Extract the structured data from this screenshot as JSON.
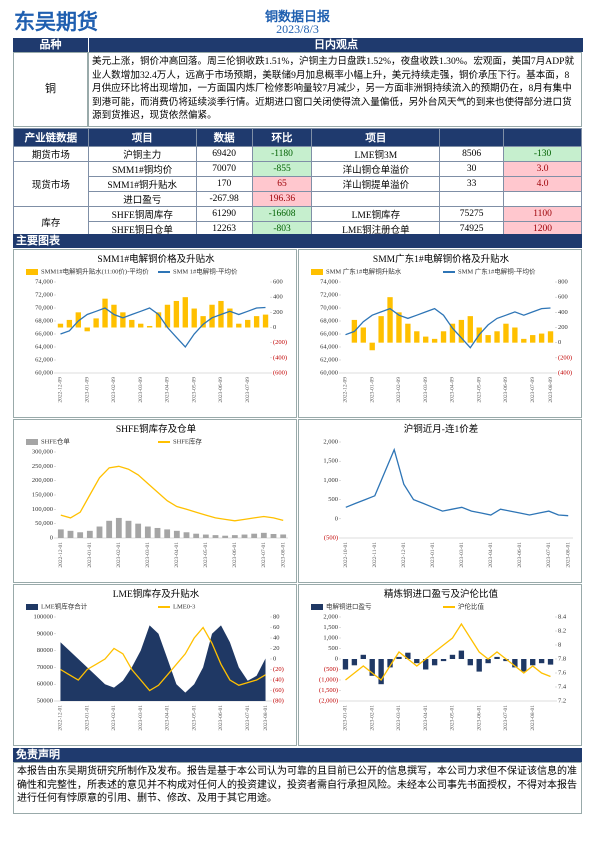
{
  "header": {
    "logo": "东吴期货",
    "title": "铜数据日报",
    "date": "2023/8/3"
  },
  "view": {
    "headers": [
      "品种",
      "日内观点"
    ],
    "variety": "铜",
    "text": "美元上涨，铜价冲高回落。周三伦铜收跌1.51%，沪铜主力日盘跌1.52%，夜盘收跌1.30%。宏观面，美国7月ADP就业人数增加32.4万人，远高于市场预期，美联储9月加息概率小幅上升，美元持续走强，铜价承压下行。基本面，8月供应环比将出现增加，一方面国内炼厂检修影响量较7月减少，另一方面非洲铜持续流入的预期仍在，8月有集中到港可能，而消费仍将延续淡季行情。近期进口窗口关闭使得流入量偏低，另外台风天气的到来也使得部分进口货源到货推迟，现货依然偏紧。"
  },
  "table": {
    "headers": [
      "产业链数据",
      "项目",
      "数据",
      "环比",
      "项目"
    ],
    "groups": [
      {
        "name": "期货市场",
        "rows": [
          [
            "沪铜主力",
            "69420",
            "-1180",
            "LME铜3M",
            "8506",
            "-130"
          ]
        ]
      },
      {
        "name": "现货市场",
        "rows": [
          [
            "SMM1#铜均价",
            "70070",
            "-855",
            "洋山铜仓单溢价",
            "30",
            "3.0"
          ],
          [
            "SMM1#铜升贴水",
            "170",
            "65",
            "洋山铜提单溢价",
            "33",
            "4.0"
          ],
          [
            "进口盈亏",
            "-267.98",
            "196.36"
          ]
        ]
      },
      {
        "name": "库存",
        "rows": [
          [
            "SHFE铜周库存",
            "61290",
            "-16608",
            "LME铜库存",
            "75275",
            "1100"
          ],
          [
            "SHFE铜日仓单",
            "12263",
            "-803",
            "LME铜注册仓单",
            "74925",
            "1200"
          ]
        ]
      }
    ]
  },
  "charts_heading": "主要图表",
  "chart_data": [
    {
      "type": "combo",
      "title": "SMM1#电解铜价格及升贴水",
      "categories": [
        "2022-12-09",
        null,
        null,
        "2023-01-09",
        null,
        null,
        "2023-02-09",
        null,
        null,
        "2023-03-09",
        null,
        null,
        "2023-04-09",
        null,
        null,
        "2023-05-09",
        null,
        null,
        "2023-06-09",
        null,
        null,
        "2023-07-09",
        null,
        null
      ],
      "series": [
        {
          "name": "SMM1#电解铜升贴水(11:00价)-平均价",
          "type": "bar",
          "axis": "y2",
          "color": "#ffc000",
          "values": [
            50,
            100,
            200,
            -50,
            120,
            380,
            300,
            200,
            100,
            50,
            20,
            200,
            300,
            350,
            400,
            250,
            150,
            300,
            350,
            250,
            50,
            100,
            150,
            170
          ]
        },
        {
          "name": "SMM 1#电解铜-平均价",
          "type": "line",
          "color": "#2e75b6",
          "values": [
            66000,
            66500,
            68000,
            69000,
            69500,
            70000,
            69000,
            68500,
            69000,
            69500,
            70000,
            69000,
            67000,
            65500,
            64000,
            66000,
            67500,
            68500,
            69000,
            69500,
            69000,
            69500,
            70000,
            70070
          ]
        }
      ],
      "ylim": [
        60000,
        74000
      ],
      "yticks": [
        {
          "value": 60000,
          "label": "60,000"
        },
        {
          "value": 62000,
          "label": "62,000"
        },
        {
          "value": 64000,
          "label": "64,000"
        },
        {
          "value": 66000,
          "label": "66,000"
        },
        {
          "value": 68000,
          "label": "68,000"
        },
        {
          "value": 70000,
          "label": "70,000"
        },
        {
          "value": 72000,
          "label": "72,000"
        },
        {
          "value": 74000,
          "label": "74,000"
        }
      ],
      "y2lim": [
        -600,
        600
      ],
      "y2ticks": [
        {
          "value": -600,
          "label": "(600)"
        },
        {
          "value": -400,
          "label": "(400)"
        },
        {
          "value": -200,
          "label": "(200)"
        },
        0,
        200,
        400,
        600
      ]
    },
    {
      "type": "combo",
      "title": "SMM广东1#电解铜价格及升贴水",
      "categories": [
        "2022-12-09",
        null,
        null,
        "2023-01-09",
        null,
        null,
        "2023-02-09",
        null,
        null,
        "2023-03-09",
        null,
        null,
        "2023-04-09",
        null,
        null,
        "2023-05-09",
        null,
        null,
        "2023-06-09",
        null,
        null,
        "2023-07-09",
        null,
        "2023-08-09"
      ],
      "series": [
        {
          "name": "SMM 广东1#电解铜升贴水",
          "type": "bar",
          "axis": "y2",
          "color": "#ffc000",
          "values": [
            0,
            300,
            200,
            -100,
            350,
            600,
            400,
            250,
            150,
            80,
            50,
            150,
            250,
            300,
            350,
            200,
            100,
            150,
            250,
            200,
            50,
            100,
            120,
            150
          ]
        },
        {
          "name": "SMM 广东1#电解铜-平均价",
          "type": "line",
          "color": "#2e75b6",
          "values": [
            65900,
            66400,
            67900,
            68900,
            69400,
            69900,
            68900,
            68400,
            68900,
            69400,
            69900,
            68900,
            66900,
            65400,
            63900,
            65900,
            67400,
            68400,
            68900,
            69400,
            68900,
            69400,
            69900,
            70000
          ]
        }
      ],
      "ylim": [
        60000,
        74000
      ],
      "yticks": [
        {
          "value": 60000,
          "label": "60,000"
        },
        {
          "value": 62000,
          "label": "62,000"
        },
        {
          "value": 64000,
          "label": "64,000"
        },
        {
          "value": 66000,
          "label": "66,000"
        },
        {
          "value": 68000,
          "label": "68,000"
        },
        {
          "value": 70000,
          "label": "70,000"
        },
        {
          "value": 72000,
          "label": "72,000"
        },
        {
          "value": 74000,
          "label": "74,000"
        }
      ],
      "y2lim": [
        -400,
        800
      ],
      "y2ticks": [
        {
          "value": -400,
          "label": "(400)"
        },
        {
          "value": -200,
          "label": "(200)"
        },
        0,
        200,
        400,
        600,
        800
      ]
    },
    {
      "type": "combo",
      "title": "SHFE铜库存及仓单",
      "categories": [
        "2022-12-01",
        null,
        null,
        "2023-01-01",
        null,
        null,
        "2023-02-01",
        null,
        null,
        "2023-03-01",
        null,
        null,
        "2023-04-01",
        null,
        null,
        "2023-05-01",
        null,
        null,
        "2023-06-01",
        null,
        null,
        "2023-07-01",
        null,
        "2023-08-01"
      ],
      "series": [
        {
          "name": "SHFE仓单",
          "type": "bar",
          "color": "#a5a5a5",
          "values": [
            30000,
            25000,
            20000,
            25000,
            40000,
            60000,
            70000,
            60000,
            50000,
            40000,
            35000,
            30000,
            25000,
            20000,
            15000,
            12000,
            10000,
            8000,
            10000,
            12000,
            15000,
            18000,
            14000,
            12263
          ]
        },
        {
          "name": "SHFE库存",
          "type": "line",
          "color": "#ffc000",
          "values": [
            80000,
            70000,
            90000,
            150000,
            210000,
            245000,
            250000,
            240000,
            220000,
            190000,
            160000,
            130000,
            110000,
            100000,
            90000,
            80000,
            70000,
            65000,
            60000,
            65000,
            70000,
            75000,
            70000,
            61290
          ]
        }
      ],
      "ylim": [
        0,
        300000
      ],
      "yticks": [
        0,
        {
          "value": 50000,
          "label": "50,000"
        },
        {
          "value": 100000,
          "label": "100,000"
        },
        {
          "value": 150000,
          "label": "150,000"
        },
        {
          "value": 200000,
          "label": "200,000"
        },
        {
          "value": 250000,
          "label": "250,000"
        },
        {
          "value": 300000,
          "label": "300,000"
        }
      ]
    },
    {
      "type": "combo",
      "title": "沪铜近月-连1价差",
      "categories": [
        "2022-10-01",
        null,
        null,
        "2022-11-01",
        null,
        null,
        "2022-12-01",
        null,
        null,
        "2023-01-01",
        null,
        null,
        "2023-03-01",
        null,
        null,
        "2023-04-01",
        null,
        null,
        "2023-06-01",
        null,
        null,
        "2023-07-01",
        null,
        "2023-08-01"
      ],
      "series": [
        {
          "name": "沪铜近月-连1价差",
          "type": "line",
          "color": "#2e75b6",
          "values": [
            300,
            400,
            500,
            600,
            1200,
            1800,
            900,
            500,
            400,
            300,
            200,
            250,
            300,
            200,
            150,
            100,
            250,
            200,
            150,
            100,
            150,
            200,
            100,
            80
          ]
        }
      ],
      "legend": false,
      "ylim": [
        -500,
        2000
      ],
      "yticks": [
        {
          "value": -500,
          "label": "(500)"
        },
        0,
        500,
        {
          "value": 1000,
          "label": "1,000"
        },
        {
          "value": 1500,
          "label": "1,500"
        },
        {
          "value": 2000,
          "label": "2,000"
        }
      ]
    },
    {
      "type": "combo",
      "title": "LME铜库存及升贴水",
      "categories": [
        "2022-12-01",
        null,
        null,
        "2023-01-01",
        null,
        null,
        "2023-02-01",
        null,
        null,
        "2023-03-01",
        null,
        null,
        "2023-04-01",
        null,
        null,
        "2023-05-01",
        null,
        null,
        "2023-06-01",
        null,
        null,
        "2023-07-01",
        null,
        "2023-08-01"
      ],
      "series": [
        {
          "name": "LME铜库存合计",
          "type": "area",
          "color": "#1f3864",
          "values": [
            85000,
            80000,
            75000,
            70000,
            65000,
            60000,
            58000,
            62000,
            70000,
            80000,
            95000,
            90000,
            75000,
            60000,
            55000,
            60000,
            70000,
            90000,
            95000,
            85000,
            70000,
            62000,
            65000,
            75275
          ]
        },
        {
          "name": "LME0-3",
          "type": "line",
          "axis": "y2",
          "color": "#ffc000",
          "values": [
            -20,
            -30,
            -40,
            -20,
            -10,
            0,
            20,
            10,
            -20,
            -40,
            -60,
            -50,
            -30,
            -10,
            10,
            40,
            60,
            30,
            -10,
            -40,
            -50,
            -45,
            -40,
            -30
          ]
        }
      ],
      "ylim": [
        50000,
        100000
      ],
      "yticks": [
        50000,
        60000,
        70000,
        80000,
        90000,
        100000
      ],
      "y2lim": [
        -80,
        80
      ],
      "y2ticks": [
        {
          "value": -80,
          "label": "(80)"
        },
        {
          "value": -60,
          "label": "(60)"
        },
        {
          "value": -40,
          "label": "(40)"
        },
        {
          "value": -20,
          "label": "(20)"
        },
        0,
        20,
        40,
        60,
        80
      ]
    },
    {
      "type": "combo",
      "title": "精炼铜进口盈亏及沪伦比值",
      "categories": [
        "2023-01-01",
        null,
        null,
        "2023-02-01",
        null,
        null,
        "2023-03-01",
        null,
        null,
        "2023-04-01",
        null,
        null,
        "2023-05-01",
        null,
        null,
        "2023-06-01",
        null,
        null,
        "2023-07-01",
        null,
        null,
        "2023-08-01",
        null,
        null
      ],
      "series": [
        {
          "name": "电解铜进口盈亏",
          "type": "bar",
          "color": "#1f3864",
          "values": [
            -500,
            -300,
            200,
            -800,
            -1200,
            -400,
            100,
            300,
            -200,
            -500,
            -300,
            -100,
            200,
            400,
            -300,
            -600,
            -200,
            100,
            -100,
            -400,
            -600,
            -300,
            -200,
            -268
          ]
        },
        {
          "name": "沪伦比值",
          "type": "line",
          "axis": "y2",
          "color": "#ffc000",
          "values": [
            7.5,
            7.6,
            7.7,
            7.6,
            7.5,
            7.7,
            7.9,
            7.8,
            7.7,
            7.8,
            7.9,
            8.0,
            8.1,
            8.3,
            8.1,
            7.9,
            7.8,
            7.9,
            7.8,
            7.7,
            7.6,
            7.7,
            7.6,
            7.55
          ]
        }
      ],
      "ylim": [
        -2000,
        2000
      ],
      "yticks": [
        {
          "value": -2000,
          "label": "(2,000)"
        },
        {
          "value": -1500,
          "label": "(1,500)"
        },
        {
          "value": -1000,
          "label": "(1,000)"
        },
        {
          "value": -500,
          "label": "(500)"
        },
        0,
        500,
        {
          "value": 1000,
          "label": "1,000"
        },
        {
          "value": 1500,
          "label": "1,500"
        },
        {
          "value": 2000,
          "label": "2,000"
        }
      ],
      "y2lim": [
        7.2,
        8.4
      ],
      "y2ticks": [
        7.2,
        7.4,
        7.6,
        7.8,
        8,
        8.2,
        8.4
      ]
    }
  ],
  "disclaimer": {
    "heading": "免责声明",
    "text": "本报告由东吴期货研究所制作及发布。报告是基于本公司认为可靠的且目前已公开的信息撰写，本公司力求但不保证该信息的准确性和完整性，所表述的意见并不构成对任何人的投资建议，投资者需自行承担风险。未经本公司事先书面授权，不得对本报告进行任何有悖原意的引用、删节、修改、及用于其它用途。"
  }
}
